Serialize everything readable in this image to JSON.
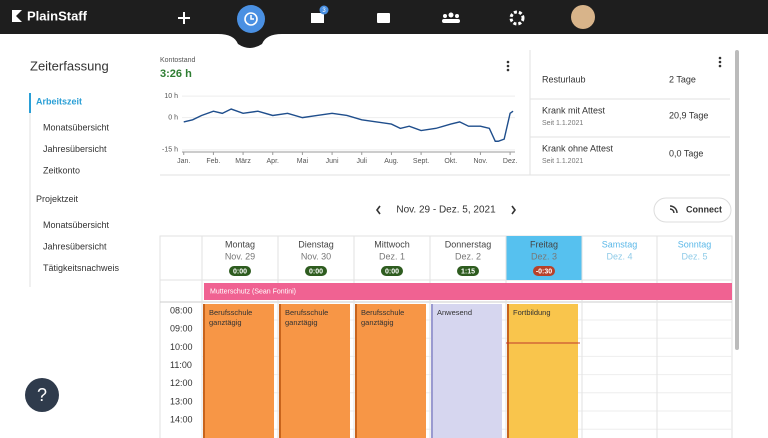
{
  "nav": {
    "brand": "PlainStaff",
    "badge": "3"
  },
  "sidebar": {
    "title": "Zeiterfassung",
    "sections": [
      {
        "label": "Arbeitszeit",
        "items": [
          "Monatsübersicht",
          "Jahresübersicht",
          "Zeitkonto"
        ]
      },
      {
        "label": "Projektzeit",
        "items": [
          "Monatsübersicht",
          "Jahresübersicht",
          "Tätigkeitsnachweis"
        ]
      }
    ]
  },
  "kontostand": {
    "label": "Kontostand",
    "value": "3:26 h",
    "chart": {
      "type": "line",
      "color": "#1f4e8c",
      "x": [
        0,
        0.3,
        0.6,
        1,
        1.3,
        1.6,
        2,
        2.5,
        3,
        3.5,
        4,
        4.5,
        5,
        5.5,
        6,
        6.5,
        7,
        7.3,
        7.6,
        8,
        8.5,
        9,
        9.3,
        9.6,
        10,
        10.3,
        10.5,
        10.6,
        10.8,
        11,
        11.1
      ],
      "values": [
        -2,
        -1,
        1,
        3,
        2,
        4,
        2,
        3,
        1,
        2,
        0,
        1,
        2,
        1,
        -1,
        -2,
        -3,
        -5,
        -4,
        -6,
        -5,
        -3,
        -2,
        -4,
        -4,
        -5,
        -11,
        -11,
        -10,
        2,
        3
      ],
      "xlim": [
        -0.8,
        11.3
      ],
      "ylim": [
        -16,
        11
      ],
      "xticks": [
        {
          "value": 0,
          "label": "Jan."
        },
        {
          "value": 1,
          "label": "Feb."
        },
        {
          "value": 2,
          "label": "März"
        },
        {
          "value": 3,
          "label": "Apr."
        },
        {
          "value": 4,
          "label": "Mai"
        },
        {
          "value": 5,
          "label": "Juni"
        },
        {
          "value": 6,
          "label": "Juli"
        },
        {
          "value": 7,
          "label": "Aug."
        },
        {
          "value": 8,
          "label": "Sept."
        },
        {
          "value": 9,
          "label": "Okt."
        },
        {
          "value": 10,
          "label": "Nov."
        },
        {
          "value": 11,
          "label": "Dez."
        }
      ],
      "yticks": [
        {
          "value": 10,
          "label": "10 h"
        },
        {
          "value": 0,
          "label": "0 h"
        },
        {
          "value": -15,
          "label": "-15 h"
        }
      ]
    }
  },
  "balances": [
    {
      "label": "Resturlaub",
      "value": "2 Tage"
    },
    {
      "label": "Krank mit Attest",
      "sub": "Seit 1.1.2021",
      "value": "20,9 Tage"
    },
    {
      "label": "Krank ohne Attest",
      "sub": "Seit 1.1.2021",
      "value": "0,0 Tage"
    }
  ],
  "week": {
    "range": "Nov. 29 - Dez. 5, 2021",
    "connect": "Connect"
  },
  "days": [
    {
      "name": "Montag",
      "date": "Nov. 29",
      "badge": "0:00",
      "event": "Berufsschule ganztägig"
    },
    {
      "name": "Dienstag",
      "date": "Nov. 30",
      "badge": "0:00",
      "event": "Berufsschule ganztägig"
    },
    {
      "name": "Mittwoch",
      "date": "Dez. 1",
      "badge": "0:00",
      "event": "Berufsschule ganztägig"
    },
    {
      "name": "Donnerstag",
      "date": "Dez. 2",
      "badge": "1:15",
      "event": "Anwesend"
    },
    {
      "name": "Freitag",
      "date": "Dez. 3",
      "badge": "-0:30",
      "event": "Fortbildung"
    },
    {
      "name": "Samstag",
      "date": "Dez. 4"
    },
    {
      "name": "Sonntag",
      "date": "Dez. 5"
    }
  ],
  "banner": "Mutterschutz (Sean Fontini)",
  "times": [
    "08:00",
    "09:00",
    "10:00",
    "11:00",
    "12:00",
    "13:00",
    "14:00"
  ],
  "help": "?"
}
